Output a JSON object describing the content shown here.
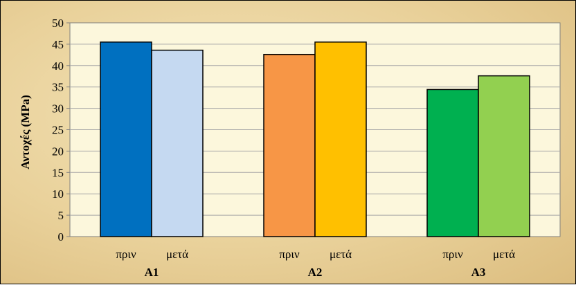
{
  "chart_data": {
    "type": "bar",
    "title": "",
    "xlabel": "",
    "ylabel": "Αντοχές (MPa)",
    "ylim": [
      0,
      50
    ],
    "yticks": [
      0,
      5,
      10,
      15,
      20,
      25,
      30,
      35,
      40,
      45,
      50
    ],
    "grid": true,
    "legend": "none",
    "groups": [
      {
        "label": "A1",
        "bars": [
          {
            "label": "πριν",
            "value": 45.5,
            "color": "#0070C0"
          },
          {
            "label": "μετά",
            "value": 43.6,
            "color": "#C5D9F1"
          }
        ]
      },
      {
        "label": "A2",
        "bars": [
          {
            "label": "πριν",
            "value": 42.6,
            "color": "#F79646"
          },
          {
            "label": "μετά",
            "value": 45.5,
            "color": "#FFC000"
          }
        ]
      },
      {
        "label": "A3",
        "bars": [
          {
            "label": "πριν",
            "value": 34.4,
            "color": "#00B050"
          },
          {
            "label": "μετά",
            "value": 37.6,
            "color": "#92D050"
          }
        ]
      }
    ],
    "plot_background": "#FCF7DC",
    "gridline_color": "#A6A6A6"
  }
}
